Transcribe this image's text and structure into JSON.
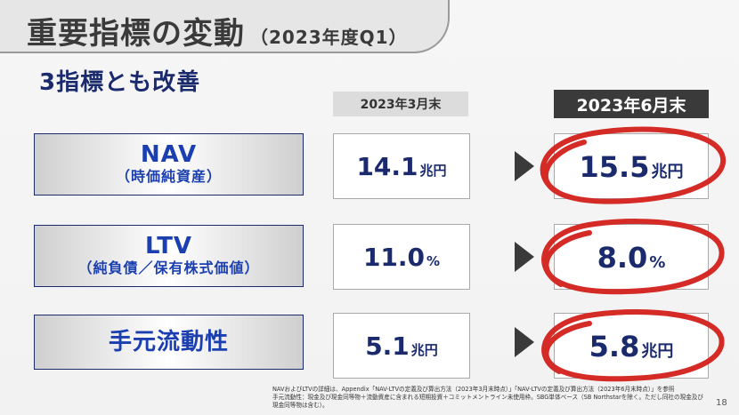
{
  "header": {
    "title": "重要指標の変動",
    "period": "（2023年度Q1）"
  },
  "subtitle": "3指標とも改善",
  "columns": {
    "prev": "2023年3月末",
    "now": "2023年6月末"
  },
  "rows": [
    {
      "label": "NAV",
      "sublabel": "（時価純資産）",
      "prev_value": "14.1",
      "prev_unit": "兆円",
      "now_value": "15.5",
      "now_unit": "兆円"
    },
    {
      "label": "LTV",
      "sublabel": "（純負債／保有株式価値）",
      "prev_value": "11.0",
      "prev_unit": "%",
      "now_value": "8.0",
      "now_unit": "%"
    },
    {
      "label": "手元流動性",
      "sublabel": "",
      "prev_value": "5.1",
      "prev_unit": "兆円",
      "now_value": "5.8",
      "now_unit": "兆円"
    }
  ],
  "footnote": {
    "line1": "NAVおよびLTVの詳細は、Appendix「NAV-LTVの定義及び算出方法（2023年3月末時点）」「NAV-LTVの定義及び算出方法（2023年6月末時点）」を参照",
    "line2": "手元流動性：現金及び現金同等物＋流動資産に含まれる短期投資＋コミットメントライン未使用枠。SBG単体ベース（SB Northstarを除く。ただし同社の現金及び現金同等物は含む）。"
  },
  "page_number": "18",
  "colors": {
    "navy": "#1a2a6c",
    "label_blue": "#1b3fb0",
    "ring_red": "#d42b27",
    "dark_gray": "#3a3a3a"
  }
}
